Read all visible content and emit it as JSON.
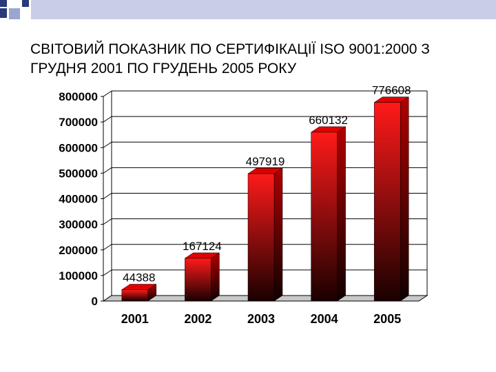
{
  "slide": {
    "title": "СВІТОВИЙ ПОКАЗНИК ПО СЕРТИФІКАЦІЇ ISO 9001:2000 З ГРУДНЯ 2001 ПО ГРУДЕНЬ 2005 РОКУ"
  },
  "colors": {
    "bar_top": "#ff1a1a",
    "bar_bottom": "#1a0000",
    "decor_dark": "#2a3a7a",
    "decor_light": "#9aa6cf"
  },
  "chart_data": {
    "type": "bar",
    "title": "",
    "xlabel": "",
    "ylabel": "",
    "categories": [
      "2001",
      "2002",
      "2003",
      "2004",
      "2005"
    ],
    "values": [
      44388,
      167124,
      497919,
      660132,
      776608
    ],
    "data_labels": [
      "44388",
      "167124",
      "497919",
      "660132",
      "776608"
    ],
    "yticks": [
      0,
      100000,
      200000,
      300000,
      400000,
      500000,
      600000,
      700000,
      800000
    ],
    "ytick_labels": [
      "0",
      "100000",
      "200000",
      "300000",
      "400000",
      "500000",
      "600000",
      "700000",
      "800000"
    ],
    "ylim": [
      0,
      800000
    ],
    "grid": true,
    "style": "3d-bar"
  }
}
